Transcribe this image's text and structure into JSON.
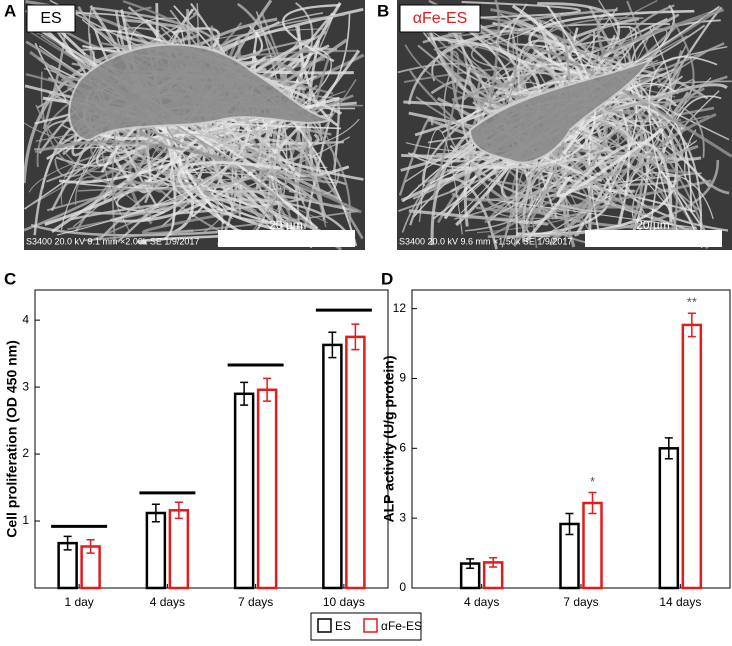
{
  "panels": [
    {
      "letter": "A",
      "label": "ES",
      "scale_bar": "20 µm",
      "info": "S3400 20.0 kV 9.1 mm ×2.00k SE 1/9/2017"
    },
    {
      "letter": "B",
      "label": "αFe-ES",
      "scale_bar": "20 µm",
      "info": "S3400 20.0 kV 9.6 mm ×1.50k SE 1/9/2017"
    }
  ],
  "chart_data": [
    {
      "type": "bar",
      "panel_letter": "C",
      "y_label": "Cell proliferation (OD 450 nm)",
      "categories": [
        "1 day",
        "4 days",
        "7 days",
        "10 days"
      ],
      "series": [
        {
          "name": "ES",
          "color": "#000000",
          "values": [
            0.67,
            1.12,
            2.9,
            3.63
          ],
          "errors": [
            0.1,
            0.13,
            0.17,
            0.19
          ]
        },
        {
          "name": "αFe-ES",
          "color": "#e41a1c",
          "values": [
            0.62,
            1.16,
            2.96,
            3.75
          ],
          "errors": [
            0.1,
            0.12,
            0.17,
            0.19
          ]
        }
      ],
      "ylim": [
        0,
        4.45
      ],
      "yticks": [
        1,
        2,
        3,
        4
      ],
      "significance_lines": [
        0.92,
        1.42,
        3.33,
        4.15
      ]
    },
    {
      "type": "bar",
      "panel_letter": "D",
      "y_label": "ALP activity (U/g protein)",
      "categories": [
        "4 days",
        "7 days",
        "14 days"
      ],
      "series": [
        {
          "name": "ES",
          "color": "#000000",
          "values": [
            1.05,
            2.75,
            6.0
          ],
          "errors": [
            0.2,
            0.45,
            0.45
          ]
        },
        {
          "name": "αFe-ES",
          "color": "#e41a1c",
          "values": [
            1.1,
            3.65,
            11.3
          ],
          "errors": [
            0.2,
            0.45,
            0.5
          ],
          "annotations": [
            null,
            "*",
            "**"
          ]
        }
      ],
      "ylim": [
        0,
        12.8
      ],
      "yticks": [
        0,
        3,
        6,
        9,
        12
      ]
    }
  ]
}
